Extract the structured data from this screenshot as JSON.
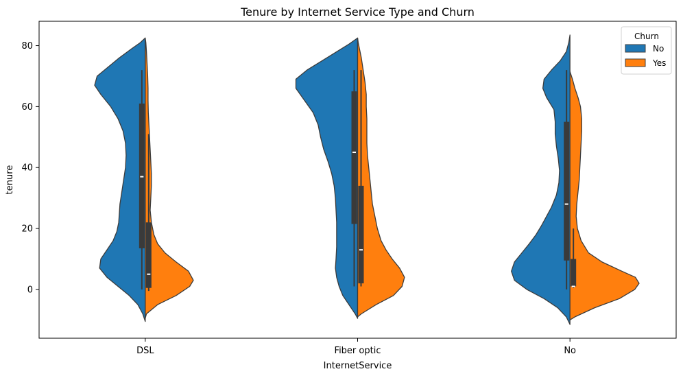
{
  "chart_data": {
    "type": "violin",
    "title": "Tenure by Internet Service Type and Churn",
    "xlabel": "InternetService",
    "ylabel": "tenure",
    "categories": [
      "DSL",
      "Fiber optic",
      "No"
    ],
    "ylim": [
      -16,
      88
    ],
    "yticks": [
      0,
      20,
      40,
      60,
      80
    ],
    "legend": {
      "title": "Churn",
      "position": "top-right"
    },
    "split": true,
    "inner": "box",
    "colors": {
      "No": "#1f77b4",
      "Yes": "#ff7f0e",
      "outline": "#3c3c3c",
      "box": "#3a3a3a",
      "median": "#ffffff"
    },
    "series": [
      {
        "name": "No",
        "side": "left",
        "groups": [
          {
            "category": "DSL",
            "extent": [
              -10.5,
              82.5
            ],
            "profile": [
              [
                -10.5,
                0
              ],
              [
                -8,
                0.04
              ],
              [
                -5,
                0.12
              ],
              [
                -2,
                0.26
              ],
              [
                1,
                0.44
              ],
              [
                4,
                0.62
              ],
              [
                7,
                0.74
              ],
              [
                10,
                0.72
              ],
              [
                13,
                0.62
              ],
              [
                16,
                0.52
              ],
              [
                19,
                0.46
              ],
              [
                22,
                0.43
              ],
              [
                25,
                0.42
              ],
              [
                28,
                0.41
              ],
              [
                32,
                0.38
              ],
              [
                36,
                0.35
              ],
              [
                40,
                0.32
              ],
              [
                44,
                0.31
              ],
              [
                48,
                0.32
              ],
              [
                52,
                0.36
              ],
              [
                56,
                0.44
              ],
              [
                60,
                0.56
              ],
              [
                64,
                0.72
              ],
              [
                67,
                0.82
              ],
              [
                70,
                0.78
              ],
              [
                73,
                0.6
              ],
              [
                76,
                0.42
              ],
              [
                79,
                0.22
              ],
              [
                81,
                0.08
              ],
              [
                82.5,
                0
              ]
            ],
            "box": {
              "q1": 13.5,
              "median": 37,
              "q3": 61,
              "whisker_low": 0,
              "whisker_high": 72
            }
          },
          {
            "category": "Fiber optic",
            "extent": [
              -9.5,
              82.5
            ],
            "profile": [
              [
                -9.5,
                0
              ],
              [
                -8,
                0.04
              ],
              [
                -5,
                0.14
              ],
              [
                -2,
                0.24
              ],
              [
                1,
                0.3
              ],
              [
                4,
                0.34
              ],
              [
                7,
                0.36
              ],
              [
                10,
                0.35
              ],
              [
                14,
                0.34
              ],
              [
                18,
                0.34
              ],
              [
                22,
                0.34
              ],
              [
                26,
                0.35
              ],
              [
                30,
                0.36
              ],
              [
                34,
                0.38
              ],
              [
                38,
                0.42
              ],
              [
                42,
                0.48
              ],
              [
                46,
                0.55
              ],
              [
                50,
                0.6
              ],
              [
                54,
                0.64
              ],
              [
                58,
                0.72
              ],
              [
                62,
                0.86
              ],
              [
                66,
                1.0
              ],
              [
                69,
                1.0
              ],
              [
                72,
                0.82
              ],
              [
                75,
                0.58
              ],
              [
                78,
                0.34
              ],
              [
                80.5,
                0.14
              ],
              [
                82.5,
                0
              ]
            ],
            "box": {
              "q1": 21.5,
              "median": 45,
              "q3": 65,
              "whisker_low": 1,
              "whisker_high": 72
            }
          },
          {
            "category": "No",
            "extent": [
              -11.5,
              83.5
            ],
            "profile": [
              [
                -11.5,
                0
              ],
              [
                -9,
                0.06
              ],
              [
                -6,
                0.2
              ],
              [
                -3,
                0.42
              ],
              [
                0,
                0.7
              ],
              [
                3,
                0.9
              ],
              [
                6,
                0.95
              ],
              [
                9,
                0.9
              ],
              [
                12,
                0.78
              ],
              [
                15,
                0.66
              ],
              [
                18,
                0.55
              ],
              [
                21,
                0.46
              ],
              [
                24,
                0.38
              ],
              [
                27,
                0.3
              ],
              [
                31,
                0.22
              ],
              [
                35,
                0.18
              ],
              [
                39,
                0.17
              ],
              [
                43,
                0.19
              ],
              [
                47,
                0.22
              ],
              [
                51,
                0.24
              ],
              [
                55,
                0.24
              ],
              [
                59,
                0.26
              ],
              [
                63,
                0.38
              ],
              [
                66,
                0.44
              ],
              [
                69,
                0.42
              ],
              [
                72,
                0.3
              ],
              [
                75,
                0.16
              ],
              [
                78,
                0.06
              ],
              [
                81,
                0.02
              ],
              [
                83.5,
                0
              ]
            ],
            "box": {
              "q1": 9.5,
              "median": 28,
              "q3": 55,
              "whisker_low": 0,
              "whisker_high": 72
            }
          }
        ]
      },
      {
        "name": "Yes",
        "side": "right",
        "groups": [
          {
            "category": "DSL",
            "extent": [
              -9.5,
              82.5
            ],
            "profile": [
              [
                -9.5,
                0
              ],
              [
                -8,
                0.02
              ],
              [
                -5,
                0.2
              ],
              [
                -2,
                0.5
              ],
              [
                1,
                0.72
              ],
              [
                3,
                0.78
              ],
              [
                6,
                0.7
              ],
              [
                9,
                0.5
              ],
              [
                12,
                0.32
              ],
              [
                15,
                0.2
              ],
              [
                18,
                0.14
              ],
              [
                22,
                0.1
              ],
              [
                26,
                0.08
              ],
              [
                30,
                0.09
              ],
              [
                34,
                0.1
              ],
              [
                38,
                0.1
              ],
              [
                42,
                0.09
              ],
              [
                46,
                0.08
              ],
              [
                50,
                0.07
              ],
              [
                54,
                0.06
              ],
              [
                58,
                0.05
              ],
              [
                62,
                0.045
              ],
              [
                66,
                0.045
              ],
              [
                70,
                0.04
              ],
              [
                74,
                0.03
              ],
              [
                78,
                0.02
              ],
              [
                81,
                0.01
              ],
              [
                82.5,
                0
              ]
            ],
            "box": {
              "q1": 0.5,
              "median": 5,
              "q3": 22,
              "whisker_low": -0.5,
              "whisker_high": 51
            }
          },
          {
            "category": "Fiber optic",
            "extent": [
              -9,
              82.5
            ],
            "profile": [
              [
                -9,
                0
              ],
              [
                -8,
                0.06
              ],
              [
                -5,
                0.3
              ],
              [
                -2,
                0.58
              ],
              [
                1,
                0.72
              ],
              [
                4,
                0.76
              ],
              [
                7,
                0.68
              ],
              [
                10,
                0.56
              ],
              [
                13,
                0.46
              ],
              [
                16,
                0.38
              ],
              [
                20,
                0.32
              ],
              [
                24,
                0.28
              ],
              [
                28,
                0.24
              ],
              [
                32,
                0.22
              ],
              [
                36,
                0.2
              ],
              [
                40,
                0.18
              ],
              [
                44,
                0.16
              ],
              [
                48,
                0.15
              ],
              [
                52,
                0.15
              ],
              [
                56,
                0.15
              ],
              [
                60,
                0.14
              ],
              [
                64,
                0.14
              ],
              [
                68,
                0.12
              ],
              [
                72,
                0.09
              ],
              [
                76,
                0.06
              ],
              [
                79,
                0.03
              ],
              [
                81,
                0.01
              ],
              [
                82.5,
                0
              ]
            ],
            "box": {
              "q1": 2,
              "median": 13,
              "q3": 34,
              "whisker_low": 1,
              "whisker_high": 72
            }
          },
          {
            "category": "No",
            "extent": [
              -10,
              71.5
            ],
            "profile": [
              [
                -10,
                0
              ],
              [
                -9,
                0.08
              ],
              [
                -6,
                0.4
              ],
              [
                -3,
                0.8
              ],
              [
                0,
                1.05
              ],
              [
                2,
                1.12
              ],
              [
                4,
                1.06
              ],
              [
                6,
                0.84
              ],
              [
                9,
                0.52
              ],
              [
                12,
                0.3
              ],
              [
                16,
                0.18
              ],
              [
                20,
                0.12
              ],
              [
                24,
                0.1
              ],
              [
                28,
                0.11
              ],
              [
                32,
                0.13
              ],
              [
                36,
                0.15
              ],
              [
                40,
                0.16
              ],
              [
                44,
                0.17
              ],
              [
                48,
                0.18
              ],
              [
                52,
                0.19
              ],
              [
                56,
                0.19
              ],
              [
                60,
                0.17
              ],
              [
                63,
                0.13
              ],
              [
                66,
                0.08
              ],
              [
                69,
                0.04
              ],
              [
                71.5,
                0
              ]
            ],
            "box": {
              "q1": 1,
              "median": 1,
              "q3": 10,
              "whisker_low": 0.5,
              "whisker_high": 20
            }
          }
        ]
      }
    ]
  }
}
